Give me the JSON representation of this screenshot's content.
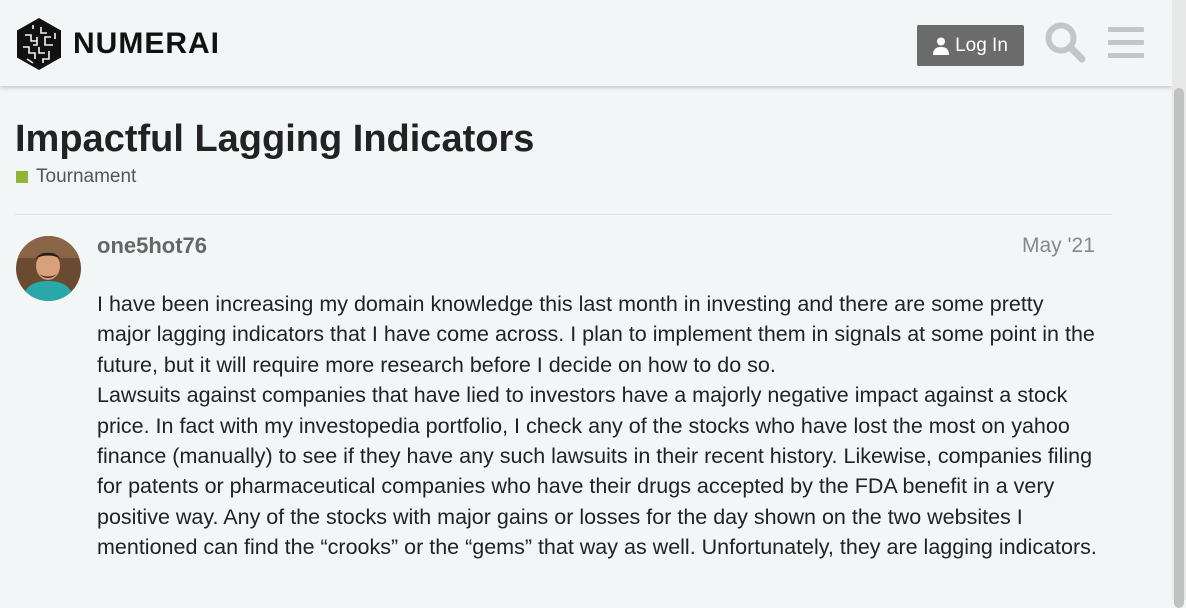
{
  "header": {
    "logo_text": "NUMERAI",
    "login_label": "Log In",
    "icons": {
      "user": "user-icon",
      "search": "search-icon",
      "menu": "hamburger-menu-icon"
    }
  },
  "topic": {
    "title": "Impactful Lagging Indicators",
    "category": {
      "name": "Tournament",
      "color": "#8fb532"
    }
  },
  "post": {
    "username": "one5hot76",
    "date": "May '21",
    "paragraphs": [
      "I have been increasing my domain knowledge this last month in investing and there are some pretty major lagging indicators that I have come across. I plan to implement them in signals at some point in the future, but it will require more research before I decide on how to do so.",
      "Lawsuits against companies that have lied to investors have a majorly negative impact against a stock price. In fact with my investopedia portfolio, I check any of the stocks who have lost the most on yahoo finance (manually) to see if they have any such lawsuits in their recent history. Likewise, companies filing for patents or pharmaceutical companies who have their drugs accepted by the FDA benefit in a very positive way. Any of the stocks with major gains or losses for the day shown on the two websites I mentioned can find the “crooks” or the “gems” that way as well. Unfortunately, they are lagging indicators."
    ]
  }
}
